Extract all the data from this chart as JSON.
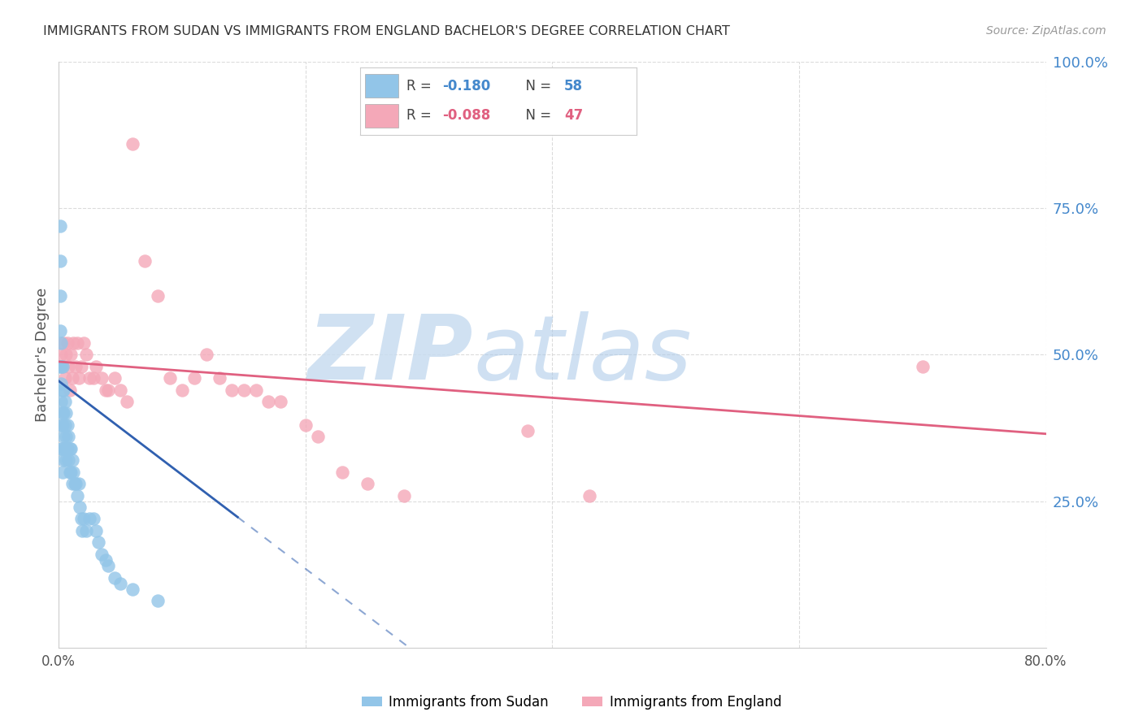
{
  "title": "IMMIGRANTS FROM SUDAN VS IMMIGRANTS FROM ENGLAND BACHELOR'S DEGREE CORRELATION CHART",
  "source": "Source: ZipAtlas.com",
  "ylabel": "Bachelor's Degree",
  "xlim": [
    0.0,
    0.8
  ],
  "ylim": [
    0.0,
    1.0
  ],
  "x_tick_positions": [
    0.0,
    0.2,
    0.4,
    0.6,
    0.8
  ],
  "x_tick_labels": [
    "0.0%",
    "",
    "",
    "",
    "80.0%"
  ],
  "y_ticks_right": [
    0.25,
    0.5,
    0.75,
    1.0
  ],
  "y_tick_labels_right": [
    "25.0%",
    "50.0%",
    "75.0%",
    "100.0%"
  ],
  "sudan_color": "#92C5E8",
  "england_color": "#F4A8B8",
  "sudan_line_color": "#3060B0",
  "england_line_color": "#E06080",
  "background_color": "#ffffff",
  "grid_color": "#d8d8d8",
  "watermark_zip_color": "#C8DCF0",
  "watermark_atlas_color": "#A8C8E8",
  "sudan_x": [
    0.001,
    0.001,
    0.001,
    0.001,
    0.001,
    0.002,
    0.002,
    0.002,
    0.002,
    0.002,
    0.002,
    0.003,
    0.003,
    0.003,
    0.003,
    0.003,
    0.003,
    0.004,
    0.004,
    0.004,
    0.004,
    0.005,
    0.005,
    0.005,
    0.006,
    0.006,
    0.006,
    0.007,
    0.007,
    0.008,
    0.008,
    0.009,
    0.009,
    0.01,
    0.01,
    0.011,
    0.011,
    0.012,
    0.013,
    0.014,
    0.015,
    0.016,
    0.017,
    0.018,
    0.019,
    0.02,
    0.022,
    0.025,
    0.028,
    0.03,
    0.032,
    0.035,
    0.038,
    0.04,
    0.045,
    0.05,
    0.06,
    0.08
  ],
  "sudan_y": [
    0.72,
    0.66,
    0.6,
    0.54,
    0.48,
    0.52,
    0.48,
    0.45,
    0.42,
    0.38,
    0.34,
    0.48,
    0.44,
    0.4,
    0.38,
    0.34,
    0.3,
    0.44,
    0.4,
    0.36,
    0.32,
    0.42,
    0.38,
    0.34,
    0.4,
    0.36,
    0.32,
    0.38,
    0.34,
    0.36,
    0.32,
    0.34,
    0.3,
    0.34,
    0.3,
    0.32,
    0.28,
    0.3,
    0.28,
    0.28,
    0.26,
    0.28,
    0.24,
    0.22,
    0.2,
    0.22,
    0.2,
    0.22,
    0.22,
    0.2,
    0.18,
    0.16,
    0.15,
    0.14,
    0.12,
    0.11,
    0.1,
    0.08
  ],
  "england_x": [
    0.002,
    0.003,
    0.004,
    0.005,
    0.006,
    0.007,
    0.008,
    0.009,
    0.01,
    0.011,
    0.012,
    0.014,
    0.015,
    0.016,
    0.018,
    0.02,
    0.022,
    0.025,
    0.028,
    0.03,
    0.035,
    0.038,
    0.04,
    0.045,
    0.05,
    0.055,
    0.06,
    0.07,
    0.08,
    0.09,
    0.1,
    0.11,
    0.12,
    0.13,
    0.14,
    0.15,
    0.16,
    0.17,
    0.18,
    0.2,
    0.21,
    0.23,
    0.25,
    0.28,
    0.38,
    0.43,
    0.7
  ],
  "england_y": [
    0.5,
    0.48,
    0.52,
    0.46,
    0.5,
    0.52,
    0.48,
    0.44,
    0.5,
    0.46,
    0.52,
    0.48,
    0.52,
    0.46,
    0.48,
    0.52,
    0.5,
    0.46,
    0.46,
    0.48,
    0.46,
    0.44,
    0.44,
    0.46,
    0.44,
    0.42,
    0.86,
    0.66,
    0.6,
    0.46,
    0.44,
    0.46,
    0.5,
    0.46,
    0.44,
    0.44,
    0.44,
    0.42,
    0.42,
    0.38,
    0.36,
    0.3,
    0.28,
    0.26,
    0.37,
    0.26,
    0.48
  ],
  "sudan_line_x0": 0.0,
  "sudan_line_x_solid_end": 0.145,
  "sudan_line_x_dashed_end": 0.42,
  "sudan_line_y0": 0.455,
  "sudan_line_slope": -1.6,
  "england_line_x0": 0.0,
  "england_line_x1": 0.8,
  "england_line_y0": 0.488,
  "england_line_y1": 0.365
}
